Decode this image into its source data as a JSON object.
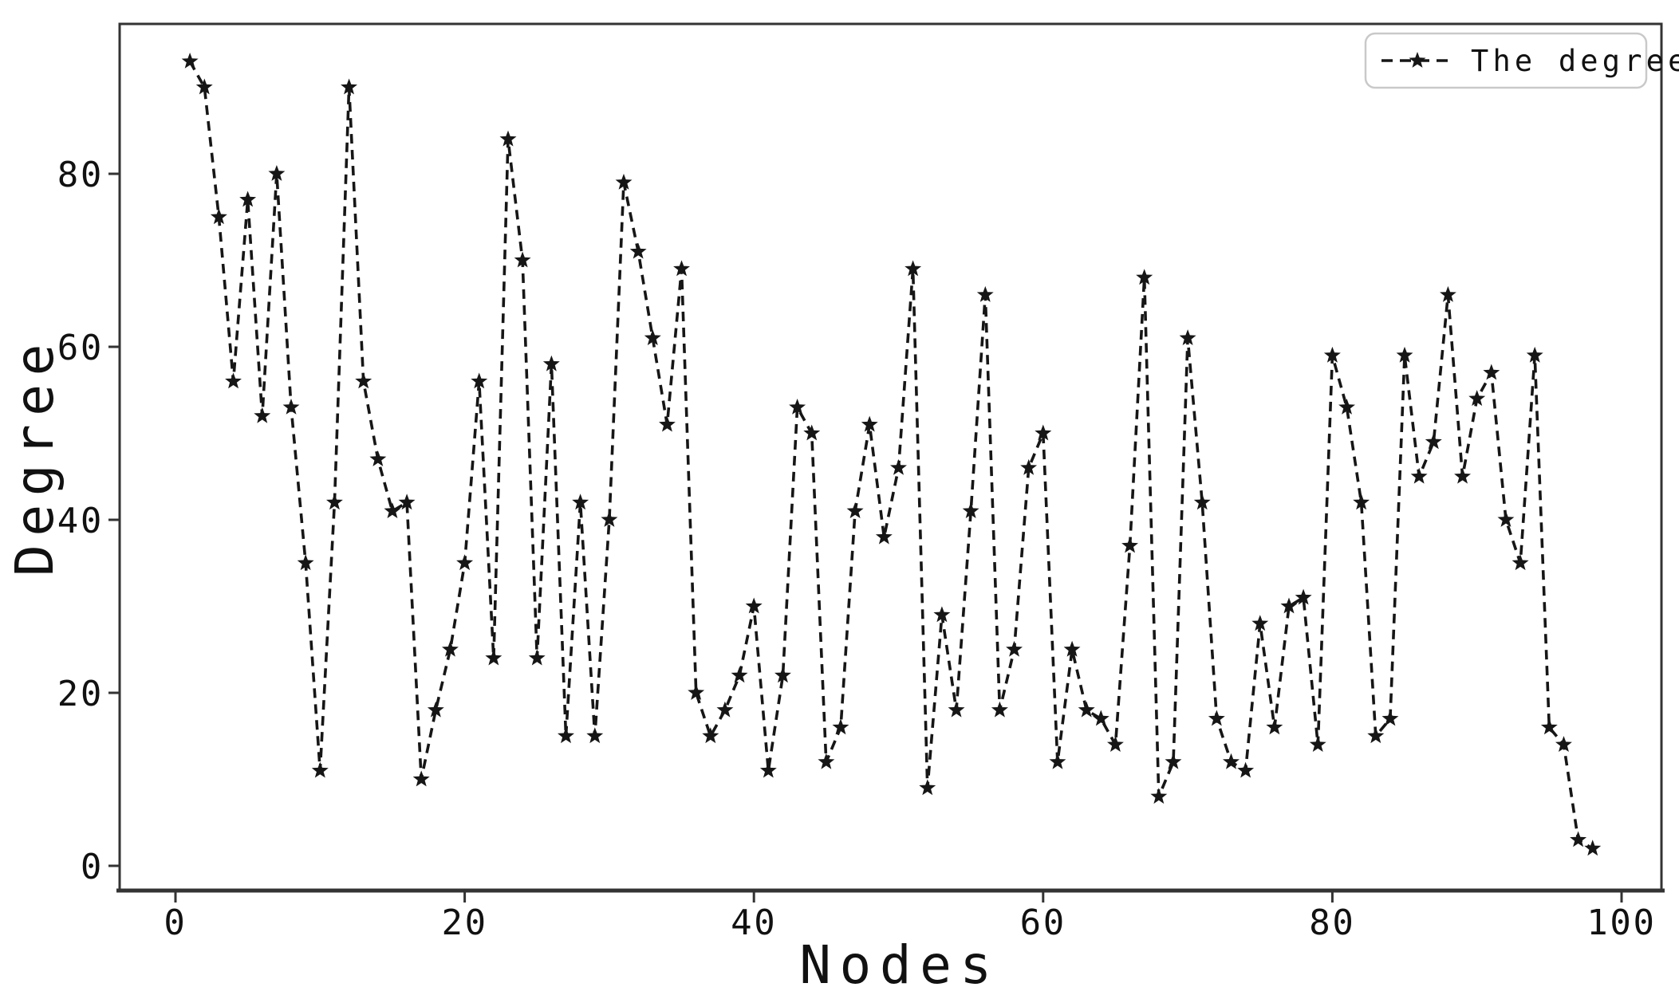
{
  "page": {
    "background": "#ffffff"
  },
  "chart_data": {
    "type": "line",
    "title": "",
    "xlabel": "Nodes",
    "ylabel": "Degree",
    "grid": false,
    "legend": {
      "label": "The degree",
      "position": "upper-right",
      "linestyle": "dashed",
      "marker": "star"
    },
    "x_ticks": [
      0,
      20,
      40,
      60,
      80,
      100
    ],
    "x_tick_labels": [
      "0",
      "20",
      "40",
      "60",
      "80",
      "100"
    ],
    "y_ticks": [
      0,
      20,
      40,
      60,
      80
    ],
    "y_tick_labels": [
      "0",
      "20",
      "40",
      "60",
      "80"
    ],
    "xlim": [
      -3.9,
      102.8
    ],
    "ylim": [
      -2.9,
      97.4
    ],
    "series": [
      {
        "name": "The degree",
        "color": "#161616",
        "linestyle": "dashed",
        "marker": "star",
        "x": [
          1,
          2,
          3,
          4,
          5,
          6,
          7,
          8,
          9,
          10,
          11,
          12,
          13,
          14,
          15,
          16,
          17,
          18,
          19,
          20,
          21,
          22,
          23,
          24,
          25,
          26,
          27,
          28,
          29,
          30,
          31,
          32,
          33,
          34,
          35,
          36,
          37,
          38,
          39,
          40,
          41,
          42,
          43,
          44,
          45,
          46,
          47,
          48,
          49,
          50,
          51,
          52,
          53,
          54,
          55,
          56,
          57,
          58,
          59,
          60,
          61,
          62,
          63,
          64,
          65,
          66,
          67,
          68,
          69,
          70,
          71,
          72,
          73,
          74,
          75,
          76,
          77,
          78,
          79,
          80,
          81,
          82,
          83,
          84,
          85,
          86,
          87,
          88,
          89,
          90,
          91,
          92,
          93,
          94,
          95,
          96,
          97,
          98
        ],
        "values": [
          93,
          90,
          75,
          56,
          77,
          52,
          80,
          53,
          35,
          11,
          42,
          90,
          56,
          47,
          41,
          42,
          10,
          18,
          25,
          35,
          56,
          24,
          84,
          70,
          24,
          58,
          15,
          42,
          15,
          40,
          79,
          71,
          61,
          51,
          69,
          20,
          15,
          18,
          22,
          30,
          11,
          22,
          53,
          50,
          12,
          16,
          41,
          51,
          38,
          46,
          69,
          9,
          29,
          18,
          41,
          66,
          18,
          25,
          46,
          50,
          12,
          25,
          18,
          17,
          14,
          37,
          68,
          8,
          12,
          61,
          42,
          17,
          12,
          11,
          28,
          16,
          30,
          31,
          14,
          59,
          53,
          42,
          15,
          17,
          59,
          45,
          49,
          66,
          45,
          54,
          57,
          40,
          35,
          59,
          16,
          14,
          3,
          2
        ]
      }
    ]
  },
  "colors": {
    "line": "#161616",
    "spine": "#333333",
    "tick": "#333333",
    "text": "#111111",
    "legend_border": "#c9c9c9",
    "background": "#ffffff"
  }
}
